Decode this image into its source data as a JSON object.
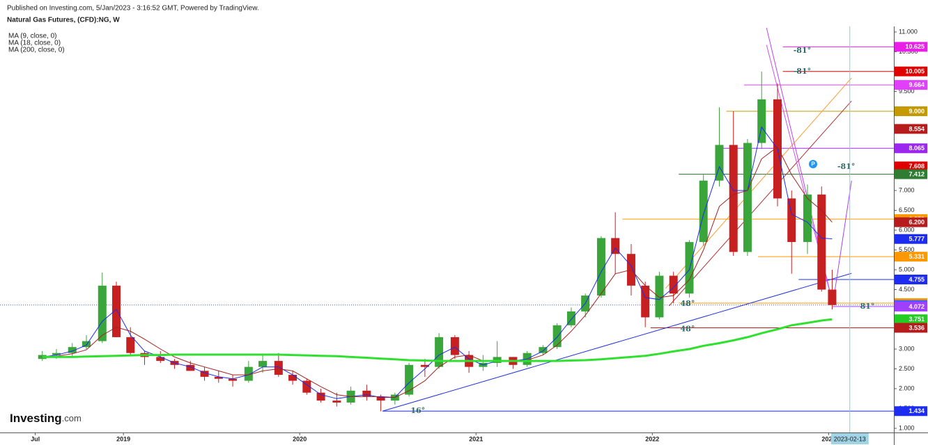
{
  "chart_data": {
    "type": "candlestick",
    "subtitle": "Published on Investing.com, 5/Jan/2023 - 3:16:52 GMT, Powered by TradingView.",
    "title": "Natural Gas Futures, (CFD):NG, W",
    "watermark": [
      "Investing",
      ".com"
    ],
    "up_color": "#3aa53a",
    "down_color": "#c62020",
    "xlim": [
      2018.3,
      2023.37
    ],
    "ylim": [
      0.895,
      11.14
    ],
    "xticks": [
      {
        "value": 2018.5,
        "label": "Jul"
      },
      2019,
      2020,
      2021,
      2022,
      2023
    ],
    "yticks": [
      {
        "value": 1,
        "label": "1.000"
      },
      {
        "value": 1.5,
        "label": "1.500"
      },
      {
        "value": 2,
        "label": "2.000"
      },
      {
        "value": 2.5,
        "label": "2.500"
      },
      {
        "value": 3,
        "label": "3.000"
      },
      {
        "value": 3.5,
        "label": "3.500"
      },
      {
        "value": 4,
        "label": "4.000"
      },
      {
        "value": 4.5,
        "label": "4.500"
      },
      {
        "value": 5,
        "label": "5.000"
      },
      {
        "value": 5.5,
        "label": "5.500"
      },
      {
        "value": 6,
        "label": "6.000"
      },
      {
        "value": 6.5,
        "label": "6.500"
      },
      {
        "value": 7,
        "label": "7.000"
      },
      {
        "value": 7.5,
        "label": "7.500"
      },
      {
        "value": 8,
        "label": "8.000"
      },
      {
        "value": 8.5,
        "label": "8.500"
      },
      {
        "value": 9,
        "label": "9.000"
      },
      {
        "value": 9.5,
        "label": "9.500"
      },
      {
        "value": 10,
        "label": "10.000"
      },
      {
        "value": 10.5,
        "label": "10.500"
      },
      {
        "value": 11,
        "label": "11.000"
      }
    ],
    "grid": false,
    "x": [
      2018.54,
      2018.62,
      2018.71,
      2018.79,
      2018.88,
      2018.96,
      2019.04,
      2019.12,
      2019.21,
      2019.29,
      2019.38,
      2019.46,
      2019.54,
      2019.62,
      2019.71,
      2019.79,
      2019.88,
      2019.96,
      2020.04,
      2020.12,
      2020.21,
      2020.29,
      2020.38,
      2020.46,
      2020.54,
      2020.62,
      2020.71,
      2020.79,
      2020.88,
      2020.96,
      2021.04,
      2021.12,
      2021.21,
      2021.29,
      2021.38,
      2021.46,
      2021.54,
      2021.62,
      2021.71,
      2021.79,
      2021.88,
      2021.96,
      2022.04,
      2022.12,
      2022.21,
      2022.29,
      2022.38,
      2022.46,
      2022.54,
      2022.62,
      2022.71,
      2022.79,
      2022.88,
      2022.96,
      2023.02
    ],
    "open": [
      2.75,
      2.85,
      2.9,
      3.05,
      3.2,
      4.6,
      3.3,
      2.9,
      2.8,
      2.7,
      2.6,
      2.45,
      2.3,
      2.25,
      2.2,
      2.55,
      2.7,
      2.35,
      2.2,
      1.9,
      1.7,
      1.65,
      1.95,
      1.8,
      1.7,
      1.85,
      2.6,
      2.55,
      3.3,
      2.85,
      2.55,
      2.65,
      2.8,
      2.6,
      2.9,
      3.05,
      3.6,
      3.95,
      4.35,
      5.8,
      5.4,
      4.6,
      3.8,
      4.85,
      4.4,
      5.7,
      7.25,
      8.15,
      5.45,
      8.2,
      9.3,
      6.8,
      5.7,
      6.9,
      4.5
    ],
    "high": [
      2.95,
      3.0,
      3.15,
      3.35,
      4.93,
      4.7,
      3.55,
      2.95,
      2.95,
      2.75,
      2.7,
      2.55,
      2.45,
      2.35,
      2.7,
      2.85,
      2.9,
      2.45,
      2.25,
      2.0,
      1.9,
      2.05,
      2.1,
      1.85,
      1.9,
      2.65,
      2.75,
      3.4,
      3.35,
      2.95,
      2.85,
      3.2,
      2.8,
      2.95,
      3.1,
      3.65,
      4.05,
      4.4,
      5.85,
      6.45,
      5.65,
      4.7,
      4.95,
      4.95,
      5.75,
      7.4,
      9.1,
      9.0,
      8.3,
      10.0,
      9.7,
      7.0,
      7.15,
      7.1,
      5.0
    ],
    "low": [
      2.7,
      2.75,
      2.8,
      3.0,
      3.15,
      3.3,
      2.85,
      2.6,
      2.65,
      2.5,
      2.45,
      2.2,
      2.15,
      2.05,
      2.15,
      2.4,
      2.3,
      2.1,
      1.85,
      1.65,
      1.55,
      1.6,
      1.7,
      1.43,
      1.6,
      1.8,
      2.3,
      2.5,
      2.75,
      2.4,
      2.45,
      2.55,
      2.5,
      2.55,
      2.85,
      3.0,
      3.55,
      3.8,
      4.3,
      4.9,
      4.35,
      3.55,
      3.75,
      4.15,
      4.3,
      5.6,
      7.1,
      5.35,
      5.35,
      8.05,
      6.6,
      4.9,
      5.4,
      4.45,
      4.0
    ],
    "close": [
      2.85,
      2.9,
      3.05,
      3.2,
      4.6,
      3.3,
      2.9,
      2.8,
      2.7,
      2.6,
      2.45,
      2.3,
      2.25,
      2.2,
      2.55,
      2.7,
      2.35,
      2.2,
      1.9,
      1.7,
      1.65,
      1.95,
      1.8,
      1.7,
      1.85,
      2.6,
      2.55,
      3.3,
      2.85,
      2.55,
      2.65,
      2.8,
      2.6,
      2.9,
      3.05,
      3.6,
      3.95,
      4.35,
      5.8,
      5.4,
      4.6,
      3.8,
      4.85,
      4.4,
      5.7,
      7.25,
      8.15,
      5.45,
      8.2,
      9.3,
      6.8,
      5.7,
      6.9,
      4.5,
      4.11
    ],
    "series": [
      {
        "name": "MA (9, close, 0)",
        "color": "#1c2cf0",
        "values": [
          2.8,
          2.85,
          2.95,
          3.1,
          3.7,
          4.0,
          3.35,
          2.95,
          2.8,
          2.65,
          2.55,
          2.4,
          2.3,
          2.25,
          2.35,
          2.55,
          2.55,
          2.35,
          2.1,
          1.85,
          1.75,
          1.8,
          1.85,
          1.78,
          1.78,
          2.15,
          2.5,
          2.85,
          3.05,
          2.75,
          2.6,
          2.7,
          2.7,
          2.75,
          2.95,
          3.3,
          3.75,
          4.15,
          4.95,
          5.55,
          5.1,
          4.3,
          4.25,
          4.55,
          5.0,
          6.4,
          7.6,
          7.0,
          7.0,
          8.6,
          8.05,
          6.4,
          6.2,
          5.8,
          5.78
        ]
      },
      {
        "name": "MA (18, close, 0)",
        "color": "#a52020",
        "values": [
          2.8,
          2.82,
          2.88,
          2.98,
          3.35,
          3.55,
          3.45,
          3.25,
          3.0,
          2.8,
          2.65,
          2.55,
          2.45,
          2.35,
          2.35,
          2.45,
          2.5,
          2.45,
          2.25,
          2.05,
          1.85,
          1.8,
          1.8,
          1.8,
          1.78,
          1.95,
          2.2,
          2.55,
          2.8,
          2.85,
          2.7,
          2.68,
          2.7,
          2.72,
          2.85,
          3.1,
          3.45,
          3.85,
          4.4,
          4.9,
          5.0,
          4.6,
          4.3,
          4.35,
          4.75,
          5.5,
          6.6,
          6.9,
          7.0,
          7.8,
          8.1,
          7.4,
          6.8,
          6.5,
          6.2
        ]
      },
      {
        "name": "MA (200, close, 0)",
        "color": "#2fe02f",
        "values": [
          2.8,
          2.8,
          2.8,
          2.81,
          2.82,
          2.83,
          2.84,
          2.85,
          2.85,
          2.86,
          2.86,
          2.86,
          2.86,
          2.86,
          2.86,
          2.86,
          2.86,
          2.85,
          2.84,
          2.83,
          2.82,
          2.8,
          2.78,
          2.76,
          2.74,
          2.72,
          2.71,
          2.7,
          2.7,
          2.7,
          2.7,
          2.7,
          2.7,
          2.7,
          2.7,
          2.7,
          2.71,
          2.72,
          2.74,
          2.77,
          2.8,
          2.83,
          2.88,
          2.94,
          3.0,
          3.08,
          3.15,
          3.22,
          3.3,
          3.4,
          3.5,
          3.6,
          3.66,
          3.72,
          3.75
        ]
      }
    ],
    "levels": [
      {
        "value": 10.625,
        "label": "10.625",
        "color": "#e91ee8",
        "from": 2022.74
      },
      {
        "value": 10.005,
        "label": "10.005",
        "color": "#e00000",
        "from": 2022.74
      },
      {
        "value": 9.664,
        "label": "9.664",
        "color": "#e040fb",
        "from": 2022.52
      },
      {
        "value": 9,
        "label": "9.000",
        "color": "#c49a00",
        "from": 2022.42
      },
      {
        "value": 8.554,
        "label": "8.554",
        "color": "#b71c1c"
      },
      {
        "value": 8.065,
        "label": "8.065",
        "color": "#9c27ef",
        "from": 2022.4
      },
      {
        "value": 7.608,
        "label": "7.608",
        "color": "#e00000"
      },
      {
        "value": 7.412,
        "label": "7.412",
        "color": "#2e7d32",
        "from": 2022.15
      },
      {
        "value": 6.279,
        "label": "6.279",
        "color": "#ff9800",
        "from": 2021.83
      },
      {
        "value": 6.2,
        "label": "6.200",
        "color": "#b71c1c"
      },
      {
        "value": 5.777,
        "label": "5.777",
        "color": "#1c2cf0"
      },
      {
        "value": 5.331,
        "label": "5.331",
        "color": "#ff9800",
        "from": 2022.6
      },
      {
        "value": 4.755,
        "label": "4.755",
        "color": "#1c2cf0",
        "from": 2022.83
      },
      {
        "value": 4.159,
        "label": "4.159",
        "color": "#ff9800",
        "from": 2022.15
      },
      {
        "value": 4.111,
        "label": "4.111",
        "color": "#3f5fff",
        "from": 2018.3,
        "dotted": true
      },
      {
        "value": 4.072,
        "label": "4.072",
        "color": "#a040ff",
        "from": 2023.02
      },
      {
        "value": 3.751,
        "label": "3.751",
        "color": "#22cc22"
      },
      {
        "value": 3.536,
        "label": "3.536",
        "color": "#b71c1c",
        "from": 2021.99
      },
      {
        "value": 1.434,
        "label": "1.434",
        "color": "#1c2cf0",
        "from": 2020.47
      }
    ],
    "trendlines": [
      {
        "x": [
          2020.47,
          2023.13
        ],
        "y": [
          1.434,
          4.91
        ],
        "color": "#2030e0"
      },
      {
        "x": [
          2022.075,
          2023.13
        ],
        "y": [
          4.53,
          9.84
        ],
        "color": "#ff9a30"
      },
      {
        "x": [
          2022.095,
          2023.13
        ],
        "y": [
          4.09,
          9.26
        ],
        "color": "#b03030"
      },
      {
        "x": [
          2022.648,
          2023.024
        ],
        "y": [
          11.1,
          4.14
        ],
        "color": "#c040f0"
      },
      {
        "x": [
          2022.648,
          2023.024
        ],
        "y": [
          10.67,
          4.14
        ],
        "color": "#d050f0"
      },
      {
        "x": [
          2023.024,
          2023.13
        ],
        "y": [
          4.14,
          7.25
        ],
        "color": "#b040f0"
      }
    ],
    "annotations": [
      {
        "text": "-81°",
        "x": 2022.85,
        "y": 10.53
      },
      {
        "text": "-81°",
        "x": 2022.85,
        "y": 10.0
      },
      {
        "text": "-81°",
        "x": 2023.1,
        "y": 7.6
      },
      {
        "text": "81°",
        "x": 2023.22,
        "y": 4.07
      },
      {
        "text": "48°",
        "x": 2022.2,
        "y": 4.14
      },
      {
        "text": "48°",
        "x": 2022.2,
        "y": 3.5
      },
      {
        "text": "16°",
        "x": 2020.67,
        "y": 1.44
      }
    ],
    "cursor": {
      "x": 2023.12,
      "label": "2023-02-13"
    }
  }
}
